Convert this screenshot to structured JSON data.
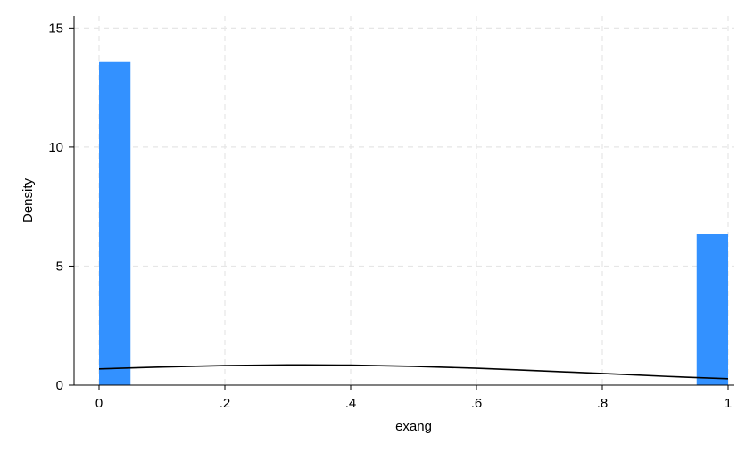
{
  "chart_data": {
    "type": "bar",
    "subtype": "histogram with density curve",
    "xlabel": "exang",
    "ylabel": "Density",
    "xlim": [
      0,
      1
    ],
    "ylim": [
      0,
      15.5
    ],
    "x_ticks": [
      0,
      0.2,
      0.4,
      0.6,
      0.8,
      1
    ],
    "x_tick_labels": [
      "0",
      ".2",
      ".4",
      ".6",
      ".8",
      "1"
    ],
    "y_ticks": [
      0,
      5,
      10,
      15
    ],
    "y_tick_labels": [
      "0",
      "5",
      "10",
      "15"
    ],
    "grid": true,
    "bar_color": "#3391ff",
    "line_color": "#000000",
    "bins": [
      {
        "x_start": 0.0,
        "x_end": 0.05,
        "density": 13.6
      },
      {
        "x_start": 0.95,
        "x_end": 1.0,
        "density": 6.35
      }
    ],
    "density_curve": {
      "x": [
        0,
        0.1,
        0.2,
        0.3,
        0.4,
        0.5,
        0.6,
        0.7,
        0.8,
        0.9,
        1.0
      ],
      "y": [
        0.68,
        0.76,
        0.82,
        0.85,
        0.84,
        0.79,
        0.71,
        0.6,
        0.49,
        0.37,
        0.27
      ]
    }
  }
}
